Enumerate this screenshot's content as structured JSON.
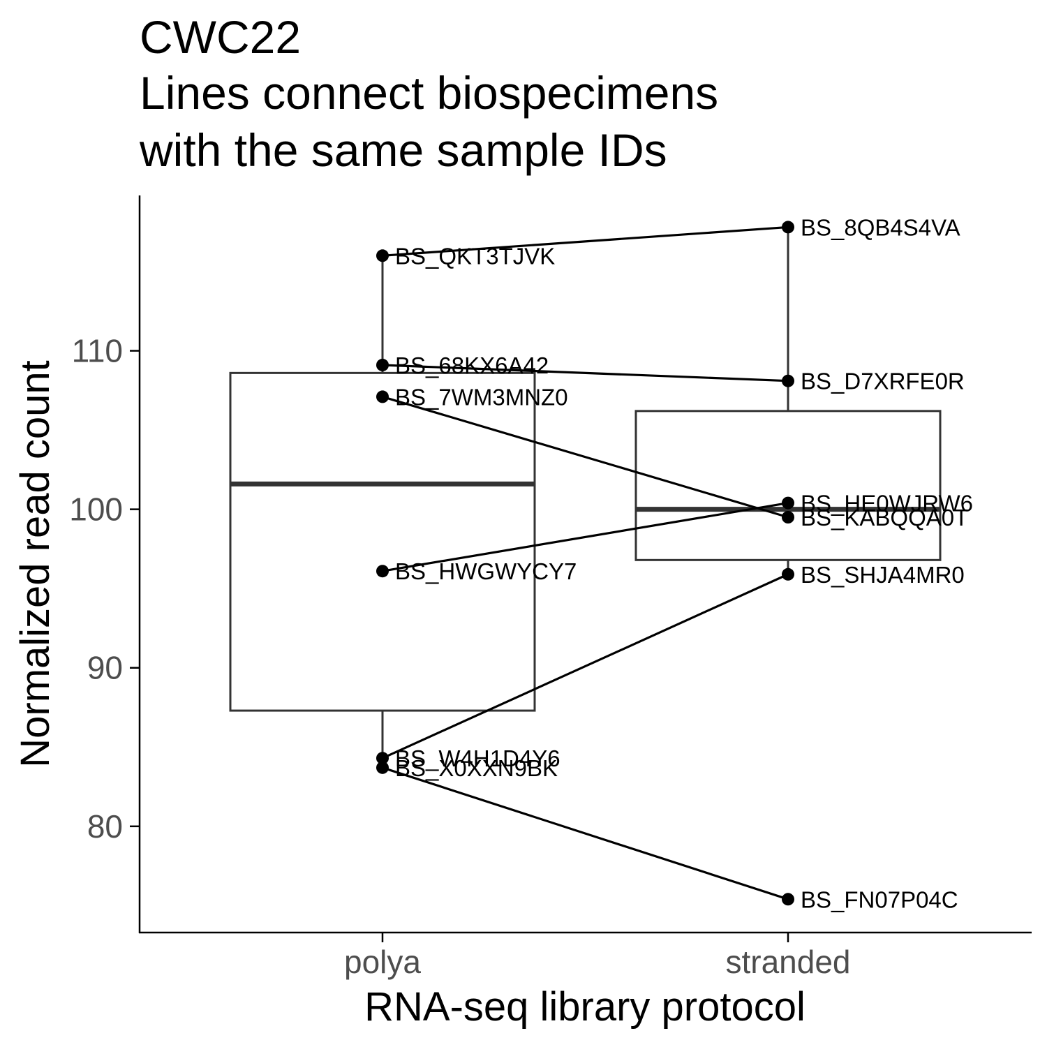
{
  "chart_data": {
    "type": "box",
    "title_lines": [
      "CWC22",
      "Lines connect biospecimens",
      "with the same sample IDs"
    ],
    "xlabel": "RNA-seq library protocol",
    "ylabel": "Normalized read count",
    "categories": [
      "polya",
      "stranded"
    ],
    "ylim": [
      73.3,
      119.8
    ],
    "yticks": [
      80,
      90,
      100,
      110
    ],
    "grid": false,
    "legend": "none",
    "boxes": [
      {
        "category": "polya",
        "whisker_low": 84.3,
        "q1": 87.3,
        "median": 101.6,
        "q3": 108.6,
        "whisker_high": 116.0
      },
      {
        "category": "stranded",
        "whisker_low": 95.9,
        "q1": 96.8,
        "median": 100.0,
        "q3": 106.2,
        "whisker_high": 117.8
      }
    ],
    "points": [
      {
        "id": "BS_QKT3TJVK",
        "category": "polya",
        "y": 116.0
      },
      {
        "id": "BS_68KX6A42",
        "category": "polya",
        "y": 109.1
      },
      {
        "id": "BS_7WM3MNZ0",
        "category": "polya",
        "y": 107.1
      },
      {
        "id": "BS_HWGWYCY7",
        "category": "polya",
        "y": 96.1
      },
      {
        "id": "BS_W4H1D4Y6",
        "category": "polya",
        "y": 84.3
      },
      {
        "id": "BS_X0XXN9BK",
        "category": "polya",
        "y": 83.7
      },
      {
        "id": "BS_8QB4S4VA",
        "category": "stranded",
        "y": 117.8
      },
      {
        "id": "BS_D7XRFE0R",
        "category": "stranded",
        "y": 108.1
      },
      {
        "id": "BS_HE0WJRW6",
        "category": "stranded",
        "y": 100.4
      },
      {
        "id": "BS_KABQQA0T",
        "category": "stranded",
        "y": 99.5
      },
      {
        "id": "BS_SHJA4MR0",
        "category": "stranded",
        "y": 95.9
      },
      {
        "id": "BS_FN07P04C",
        "category": "stranded",
        "y": 75.4
      }
    ],
    "links": [
      [
        "BS_QKT3TJVK",
        "BS_8QB4S4VA"
      ],
      [
        "BS_68KX6A42",
        "BS_D7XRFE0R"
      ],
      [
        "BS_7WM3MNZ0",
        "BS_KABQQA0T"
      ],
      [
        "BS_HWGWYCY7",
        "BS_HE0WJRW6"
      ],
      [
        "BS_W4H1D4Y6",
        "BS_SHJA4MR0"
      ],
      [
        "BS_X0XXN9BK",
        "BS_FN07P04C"
      ]
    ],
    "colors": {
      "box": "#333333",
      "points": "#000000",
      "lines": "#000000",
      "axis": "#000000",
      "tick_label": "#4d4d4d"
    }
  }
}
